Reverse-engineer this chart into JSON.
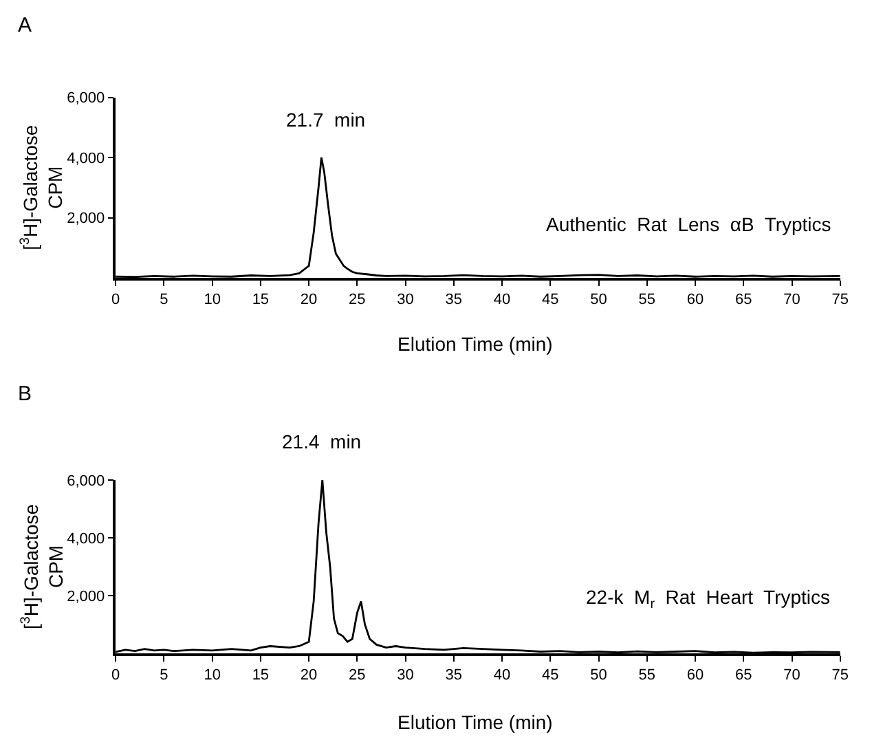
{
  "chart_data": [
    {
      "type": "line",
      "title": "A",
      "xlabel": "Elution Time (min)",
      "ylabel": "[$^{3}$H]-Galactose\nCPM",
      "x": [
        0,
        2,
        4,
        6,
        8,
        10,
        12,
        14,
        16,
        18,
        19,
        20,
        20.5,
        21,
        21.3,
        21.6,
        22,
        22.4,
        22.8,
        23.2,
        23.6,
        24,
        24.5,
        25,
        26,
        27,
        28,
        30,
        32,
        34,
        36,
        38,
        40,
        42,
        44,
        46,
        48,
        50,
        52,
        54,
        56,
        58,
        60,
        62,
        64,
        66,
        68,
        70,
        72,
        75
      ],
      "series": [
        {
          "color": "#000000",
          "values": [
            40,
            30,
            60,
            40,
            70,
            50,
            40,
            80,
            60,
            90,
            150,
            400,
            1500,
            3000,
            4000,
            3500,
            2400,
            1400,
            800,
            600,
            400,
            300,
            200,
            150,
            120,
            80,
            60,
            70,
            50,
            60,
            90,
            60,
            50,
            70,
            40,
            60,
            90,
            100,
            60,
            80,
            50,
            70,
            40,
            60,
            50,
            70,
            40,
            60,
            50,
            60
          ]
        }
      ],
      "annotations": [
        {
          "text": "21.7  min",
          "x": 21.7,
          "y": 4000
        },
        "Authentic  Rat  Lens  αB  Tryptics"
      ],
      "xlim": [
        0,
        75
      ],
      "xticks": [
        0,
        5,
        10,
        15,
        20,
        25,
        30,
        35,
        40,
        45,
        50,
        55,
        60,
        65,
        70,
        75
      ],
      "ylim": [
        0,
        6000
      ],
      "yticks": [
        {
          "value": 2000,
          "label": "2,000"
        },
        {
          "value": 4000,
          "label": "4,000"
        },
        {
          "value": 6000,
          "label": "6,000"
        }
      ],
      "marker": "none",
      "line_style": "solid"
    },
    {
      "type": "line",
      "title": "B",
      "xlabel": "Elution Time (min)",
      "ylabel": "[$^{3}$H]-Galactose\nCPM",
      "x": [
        0,
        1,
        2,
        3,
        4,
        5,
        6,
        8,
        10,
        12,
        14,
        15,
        16,
        18,
        19,
        20,
        20.5,
        21,
        21.4,
        21.8,
        22.2,
        22.6,
        23,
        23.5,
        24,
        24.5,
        25,
        25.4,
        25.8,
        26.3,
        27,
        28,
        29,
        30,
        32,
        34,
        36,
        38,
        40,
        42,
        44,
        46,
        48,
        50,
        52,
        54,
        56,
        58,
        60,
        62,
        64,
        66,
        68,
        70,
        72,
        75
      ],
      "series": [
        {
          "color": "#000000",
          "values": [
            50,
            120,
            80,
            150,
            100,
            120,
            80,
            120,
            100,
            150,
            100,
            200,
            250,
            200,
            250,
            400,
            1800,
            4500,
            6000,
            4200,
            3000,
            1200,
            700,
            600,
            400,
            500,
            1400,
            1800,
            1000,
            500,
            300,
            200,
            250,
            200,
            150,
            120,
            180,
            150,
            120,
            100,
            60,
            80,
            40,
            60,
            30,
            70,
            40,
            60,
            80,
            30,
            50,
            20,
            40,
            30,
            50,
            40
          ]
        }
      ],
      "annotations": [
        {
          "text": "21.4  min",
          "x": 21.4,
          "y": 6000
        },
        "22-k  M$_{r}$  Rat  Heart  Tryptics"
      ],
      "xlim": [
        0,
        75
      ],
      "xticks": [
        0,
        5,
        10,
        15,
        20,
        25,
        30,
        35,
        40,
        45,
        50,
        55,
        60,
        65,
        70,
        75
      ],
      "ylim": [
        0,
        6000
      ],
      "yticks": [
        {
          "value": 2000,
          "label": "2,000"
        },
        {
          "value": 4000,
          "label": "4,000"
        },
        {
          "value": 6000,
          "label": "6,000"
        }
      ],
      "marker": "none",
      "line_style": "solid"
    }
  ]
}
